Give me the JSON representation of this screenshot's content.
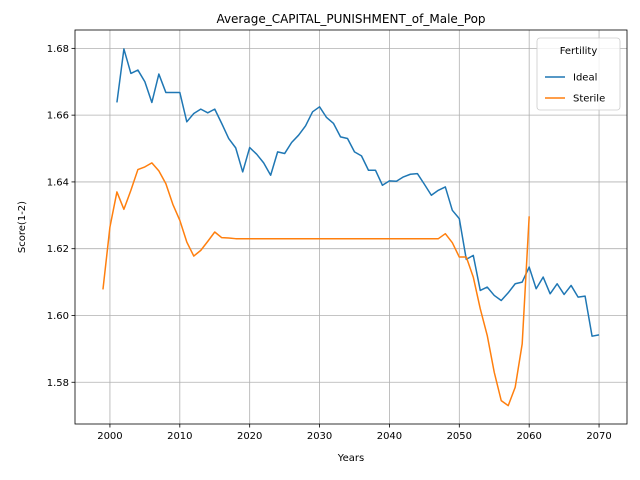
{
  "chart_data": {
    "type": "line",
    "title": "Average_CAPITAL_PUNISHMENT_of_Male_Pop",
    "xlabel": "Years",
    "ylabel": "Score(1-2)",
    "xlim": [
      1995,
      2074
    ],
    "ylim": [
      1.5675,
      1.6855
    ],
    "xticks": [
      2000,
      2010,
      2020,
      2030,
      2040,
      2050,
      2060,
      2070
    ],
    "xtick_labels": [
      "2000",
      "2010",
      "2020",
      "2030",
      "2040",
      "2050",
      "2060",
      "2070"
    ],
    "yticks": [
      1.58,
      1.6,
      1.62,
      1.64,
      1.66,
      1.68
    ],
    "ytick_labels": [
      "1.58",
      "1.60",
      "1.62",
      "1.64",
      "1.66",
      "1.68"
    ],
    "grid": true,
    "legend": {
      "title": "Fertility",
      "position": "top-right"
    },
    "series": [
      {
        "name": "Ideal",
        "color": "#1f77b4",
        "points": [
          [
            2001,
            1.6638
          ],
          [
            2002,
            1.6798
          ],
          [
            2003,
            1.6725
          ],
          [
            2004,
            1.6735
          ],
          [
            2005,
            1.67
          ],
          [
            2006,
            1.6638
          ],
          [
            2007,
            1.6723
          ],
          [
            2008,
            1.6668
          ],
          [
            2009,
            1.6668
          ],
          [
            2010,
            1.6668
          ],
          [
            2011,
            1.658
          ],
          [
            2012,
            1.6605
          ],
          [
            2013,
            1.6618
          ],
          [
            2014,
            1.6607
          ],
          [
            2015,
            1.6618
          ],
          [
            2016,
            1.6575
          ],
          [
            2017,
            1.653
          ],
          [
            2018,
            1.6502
          ],
          [
            2019,
            1.643
          ],
          [
            2020,
            1.6503
          ],
          [
            2021,
            1.6483
          ],
          [
            2022,
            1.6457
          ],
          [
            2023,
            1.642
          ],
          [
            2024,
            1.649
          ],
          [
            2025,
            1.6485
          ],
          [
            2026,
            1.6518
          ],
          [
            2027,
            1.654
          ],
          [
            2028,
            1.6568
          ],
          [
            2029,
            1.661
          ],
          [
            2030,
            1.6625
          ],
          [
            2031,
            1.6593
          ],
          [
            2032,
            1.6575
          ],
          [
            2033,
            1.6535
          ],
          [
            2034,
            1.653
          ],
          [
            2035,
            1.649
          ],
          [
            2036,
            1.6478
          ],
          [
            2037,
            1.6435
          ],
          [
            2038,
            1.6435
          ],
          [
            2039,
            1.639
          ],
          [
            2040,
            1.6403
          ],
          [
            2041,
            1.6402
          ],
          [
            2042,
            1.6415
          ],
          [
            2043,
            1.6423
          ],
          [
            2044,
            1.6425
          ],
          [
            2045,
            1.6393
          ],
          [
            2046,
            1.636
          ],
          [
            2047,
            1.6375
          ],
          [
            2048,
            1.6385
          ],
          [
            2049,
            1.6315
          ],
          [
            2050,
            1.629
          ],
          [
            2051,
            1.6168
          ],
          [
            2052,
            1.618
          ],
          [
            2053,
            1.6075
          ],
          [
            2054,
            1.6085
          ],
          [
            2055,
            1.606
          ],
          [
            2056,
            1.6045
          ],
          [
            2057,
            1.6068
          ],
          [
            2058,
            1.6095
          ],
          [
            2059,
            1.61
          ],
          [
            2060,
            1.6145
          ],
          [
            2061,
            1.608
          ],
          [
            2062,
            1.6115
          ],
          [
            2063,
            1.6065
          ],
          [
            2064,
            1.6095
          ],
          [
            2065,
            1.6063
          ],
          [
            2066,
            1.609
          ],
          [
            2067,
            1.6055
          ],
          [
            2068,
            1.6058
          ],
          [
            2069,
            1.5938
          ],
          [
            2070,
            1.5942
          ]
        ]
      },
      {
        "name": "Sterile",
        "color": "#ff7f0e",
        "points": [
          [
            1999,
            1.6078
          ],
          [
            2000,
            1.6265
          ],
          [
            2001,
            1.637
          ],
          [
            2002,
            1.6318
          ],
          [
            2003,
            1.6375
          ],
          [
            2004,
            1.6437
          ],
          [
            2005,
            1.6445
          ],
          [
            2006,
            1.6457
          ],
          [
            2007,
            1.6433
          ],
          [
            2008,
            1.6395
          ],
          [
            2009,
            1.6333
          ],
          [
            2010,
            1.6285
          ],
          [
            2011,
            1.622
          ],
          [
            2012,
            1.6178
          ],
          [
            2013,
            1.6195
          ],
          [
            2014,
            1.6222
          ],
          [
            2015,
            1.625
          ],
          [
            2016,
            1.6233
          ],
          [
            2017,
            1.6232
          ],
          [
            2018,
            1.623
          ],
          [
            2019,
            1.623
          ],
          [
            2020,
            1.623
          ],
          [
            2025,
            1.623
          ],
          [
            2030,
            1.623
          ],
          [
            2035,
            1.623
          ],
          [
            2040,
            1.623
          ],
          [
            2045,
            1.623
          ],
          [
            2047,
            1.623
          ],
          [
            2048,
            1.6245
          ],
          [
            2049,
            1.6218
          ],
          [
            2050,
            1.6175
          ],
          [
            2051,
            1.6175
          ],
          [
            2052,
            1.6115
          ],
          [
            2053,
            1.602
          ],
          [
            2054,
            1.594
          ],
          [
            2055,
            1.583
          ],
          [
            2056,
            1.5745
          ],
          [
            2057,
            1.573
          ],
          [
            2058,
            1.5785
          ],
          [
            2059,
            1.5915
          ],
          [
            2060,
            1.6297
          ]
        ]
      }
    ]
  }
}
